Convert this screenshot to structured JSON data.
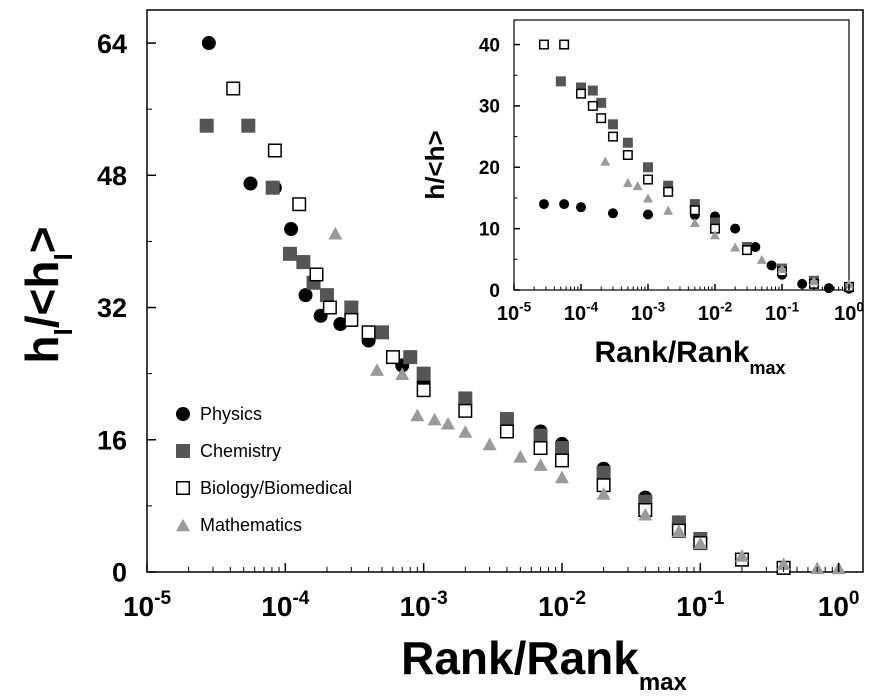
{
  "chart_data": [
    {
      "type": "scatter",
      "title": "",
      "xlabel_main": "Rank/Rank",
      "xlabel_sub": "max",
      "ylabel_parts": [
        "h",
        "I",
        "/<h",
        "I",
        ">"
      ],
      "x_scale": "log",
      "xlim": [
        1e-05,
        1.5
      ],
      "ylim": [
        0,
        68
      ],
      "x_ticks": [
        {
          "value": 1e-05,
          "label_base": "10",
          "label_exp": "-5"
        },
        {
          "value": 0.0001,
          "label_base": "10",
          "label_exp": "-4"
        },
        {
          "value": 0.001,
          "label_base": "10",
          "label_exp": "-3"
        },
        {
          "value": 0.01,
          "label_base": "10",
          "label_exp": "-2"
        },
        {
          "value": 0.1,
          "label_base": "10",
          "label_exp": "-1"
        },
        {
          "value": 1,
          "label_base": "10",
          "label_exp": "0"
        }
      ],
      "y_ticks": [
        "0",
        "16",
        "32",
        "48",
        "64"
      ],
      "legend_position": "bottom-left",
      "series": [
        {
          "name": "Physics",
          "marker": "circle",
          "color": "#000000",
          "x": [
            2.8e-05,
            5.6e-05,
            8.4e-05,
            0.00011,
            0.00014,
            0.00018,
            0.00025,
            0.0004,
            0.0007,
            0.001,
            0.002,
            0.004,
            0.007,
            0.01,
            0.02,
            0.04,
            0.07,
            0.1,
            0.2,
            0.4
          ],
          "y": [
            64,
            47,
            46.5,
            41.5,
            33.5,
            31,
            30,
            28,
            25,
            23,
            20.5,
            18.5,
            17,
            15.5,
            12.5,
            9,
            6,
            4,
            1.5,
            0.5
          ]
        },
        {
          "name": "Chemistry",
          "marker": "square",
          "color": "#555555",
          "x": [
            2.7e-05,
            5.4e-05,
            8.1e-05,
            0.000108,
            0.000135,
            0.00016,
            0.0002,
            0.0003,
            0.0005,
            0.0008,
            0.001,
            0.002,
            0.004,
            0.007,
            0.01,
            0.02,
            0.04,
            0.07,
            0.1,
            0.2,
            0.4
          ],
          "y": [
            54,
            54,
            46.5,
            38.5,
            37.5,
            35,
            33.5,
            32,
            29,
            26,
            24,
            21,
            18.5,
            16.5,
            15,
            12,
            8.5,
            6,
            4,
            1.5,
            0.5
          ]
        },
        {
          "name": "Biology/Biomedical",
          "marker": "open-square",
          "color": "#000000",
          "x": [
            4.2e-05,
            8.4e-05,
            0.000126,
            0.000168,
            0.00021,
            0.0003,
            0.0004,
            0.0006,
            0.001,
            0.002,
            0.004,
            0.007,
            0.01,
            0.02,
            0.04,
            0.07,
            0.1,
            0.2,
            0.4
          ],
          "y": [
            58.5,
            51,
            44.5,
            36,
            32,
            30.5,
            29,
            26,
            22,
            19.5,
            17,
            15,
            13.5,
            10.5,
            7.5,
            5,
            3.5,
            1.5,
            0.5
          ]
        },
        {
          "name": "Mathematics",
          "marker": "triangle",
          "color": "#9a9a9a",
          "x": [
            0.00023,
            0.00046,
            0.0007,
            0.0009,
            0.0012,
            0.0015,
            0.002,
            0.003,
            0.005,
            0.007,
            0.01,
            0.02,
            0.04,
            0.07,
            0.1,
            0.2,
            0.4,
            0.7,
            1.0
          ],
          "y": [
            41,
            24.5,
            24,
            19,
            18.5,
            18,
            17,
            15.5,
            14,
            13,
            11.5,
            9.5,
            7,
            5,
            3.5,
            2,
            1,
            0.5,
            0.5
          ]
        }
      ],
      "inset": {
        "type": "scatter",
        "xlabel_main": "Rank/Rank",
        "xlabel_sub": "max",
        "ylabel": "h/<h>",
        "x_scale": "log",
        "xlim": [
          1e-05,
          1
        ],
        "ylim": [
          0,
          44
        ],
        "y_ticks": [
          "0",
          "10",
          "20",
          "30",
          "40"
        ],
        "x_ticks": [
          {
            "value": 1e-05,
            "label_base": "10",
            "label_exp": "-5"
          },
          {
            "value": 0.0001,
            "label_base": "10",
            "label_exp": "-4"
          },
          {
            "value": 0.001,
            "label_base": "10",
            "label_exp": "-3"
          },
          {
            "value": 0.01,
            "label_base": "10",
            "label_exp": "-2"
          },
          {
            "value": 0.1,
            "label_base": "10",
            "label_exp": "-1"
          },
          {
            "value": 1,
            "label_base": "10",
            "label_exp": "0"
          }
        ],
        "series": [
          {
            "name": "Physics",
            "marker": "circle",
            "color": "#000000",
            "x": [
              2.8e-05,
              5.6e-05,
              0.0001,
              0.0003,
              0.001,
              0.005,
              0.01,
              0.02,
              0.04,
              0.07,
              0.1,
              0.2,
              0.5,
              1.0
            ],
            "y": [
              14,
              14,
              13.5,
              12.5,
              12.3,
              12.2,
              12,
              10,
              7,
              4,
              2.5,
              1,
              0.3,
              0.2
            ]
          },
          {
            "name": "Chemistry",
            "marker": "square",
            "color": "#555555",
            "x": [
              5e-05,
              0.0001,
              0.00015,
              0.0002,
              0.0003,
              0.0005,
              0.001,
              0.002,
              0.005,
              0.01,
              0.03,
              0.1,
              0.3,
              1.0
            ],
            "y": [
              34,
              33,
              32.5,
              30.5,
              27,
              24,
              20,
              17,
              14,
              11,
              7,
              3.5,
              1.5,
              0.5
            ]
          },
          {
            "name": "Biology/Biomedical",
            "marker": "open-square",
            "color": "#000000",
            "x": [
              2.8e-05,
              5.6e-05,
              0.0001,
              0.00015,
              0.0002,
              0.0003,
              0.0005,
              0.001,
              0.002,
              0.005,
              0.01,
              0.03,
              0.1,
              0.3,
              1.0
            ],
            "y": [
              40,
              40,
              32,
              30,
              28,
              25,
              22,
              18,
              16,
              13,
              10,
              6.5,
              3,
              1,
              0.5
            ]
          },
          {
            "name": "Mathematics",
            "marker": "triangle",
            "color": "#9a9a9a",
            "x": [
              0.00023,
              0.0005,
              0.0007,
              0.001,
              0.002,
              0.005,
              0.01,
              0.02,
              0.05,
              0.1,
              0.3,
              1.0
            ],
            "y": [
              21,
              17.5,
              17,
              15,
              13,
              11,
              9,
              7,
              5,
              3.5,
              1.5,
              1
            ]
          }
        ]
      }
    }
  ]
}
